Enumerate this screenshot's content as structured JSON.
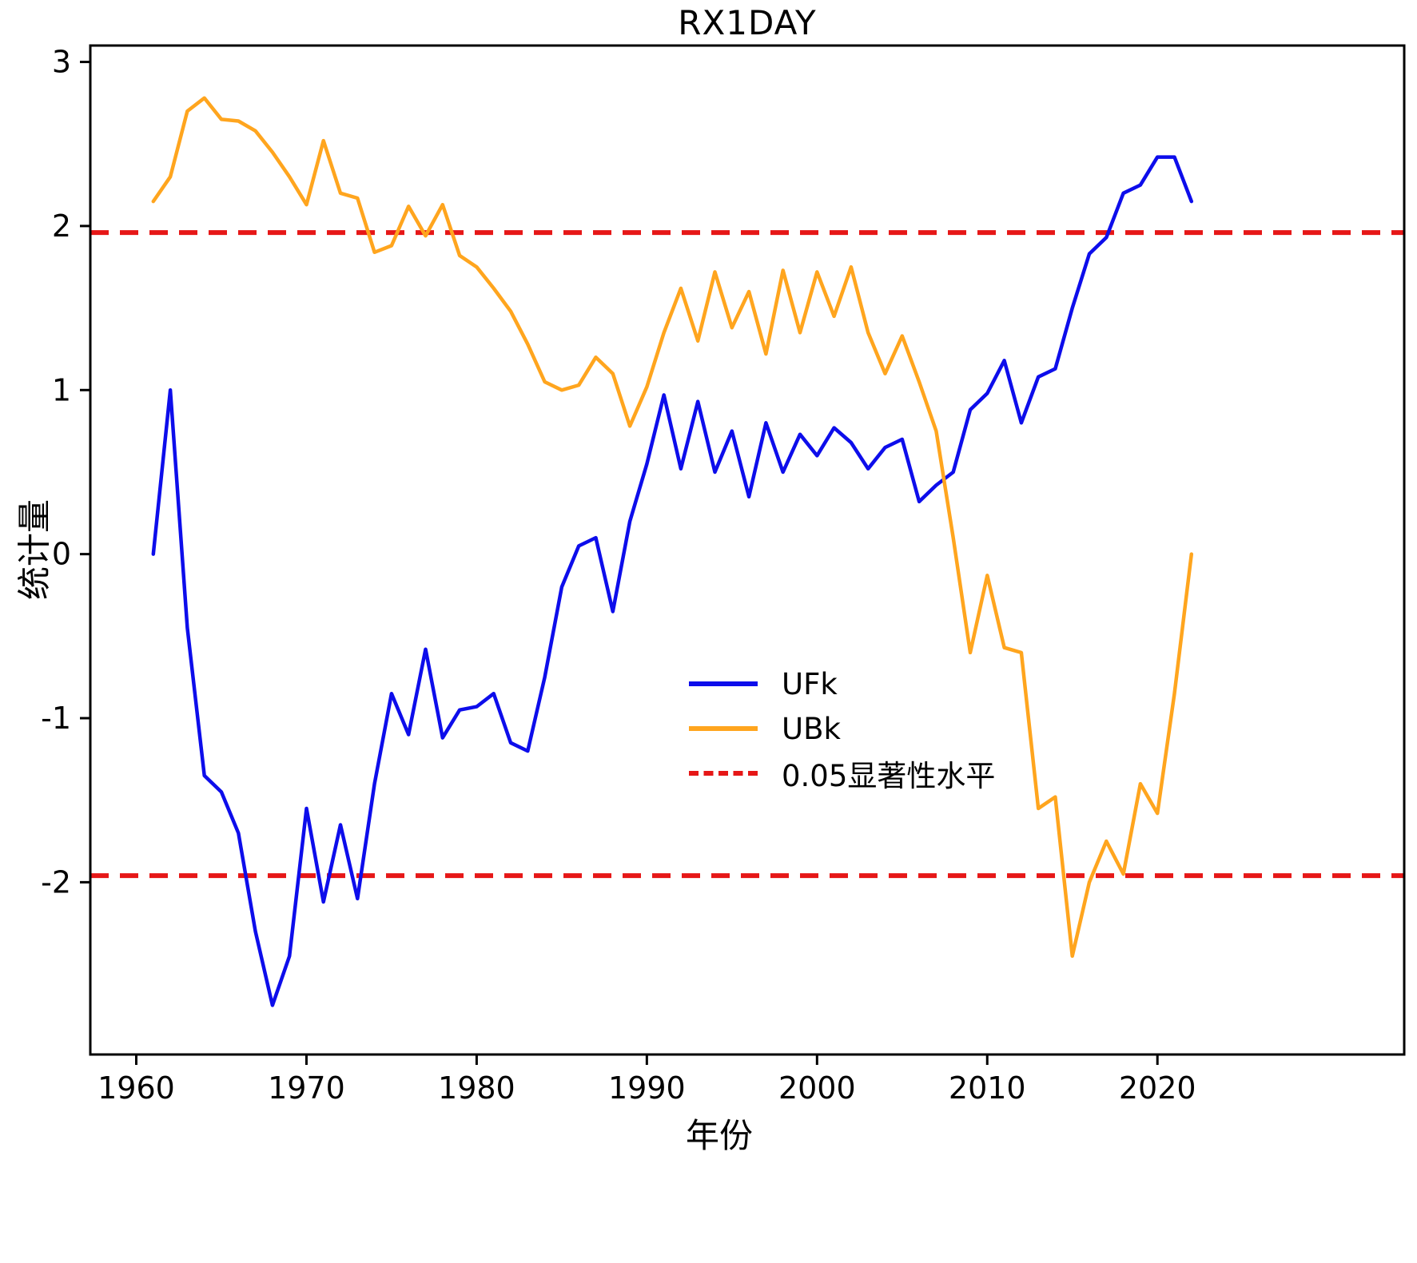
{
  "chart_data": {
    "type": "line",
    "title": "RX1DAY",
    "xlabel": "年份",
    "ylabel": "统计量",
    "xlim": [
      1957.3,
      2034.5
    ],
    "ylim": [
      -3.05,
      3.1
    ],
    "xticks": [
      1960,
      1970,
      1980,
      1990,
      2000,
      2010,
      2020
    ],
    "yticks": [
      -2,
      -1,
      0,
      1,
      2,
      3
    ],
    "grid": false,
    "legend_position": "center-right-inside",
    "x": [
      1961,
      1962,
      1963,
      1964,
      1965,
      1966,
      1967,
      1968,
      1969,
      1970,
      1971,
      1972,
      1973,
      1974,
      1975,
      1976,
      1977,
      1978,
      1979,
      1980,
      1981,
      1982,
      1983,
      1984,
      1985,
      1986,
      1987,
      1988,
      1989,
      1990,
      1991,
      1992,
      1993,
      1994,
      1995,
      1996,
      1997,
      1998,
      1999,
      2000,
      2001,
      2002,
      2003,
      2004,
      2005,
      2006,
      2007,
      2008,
      2009,
      2010,
      2011,
      2012,
      2013,
      2014,
      2015,
      2016,
      2017,
      2018,
      2019,
      2020,
      2021,
      2022
    ],
    "series": [
      {
        "name": "UFk",
        "color": "#0d0deb",
        "style": "solid",
        "values": [
          0.0,
          1.0,
          -0.45,
          -1.35,
          -1.45,
          -1.7,
          -2.3,
          -2.75,
          -2.45,
          -1.55,
          -2.12,
          -1.65,
          -2.1,
          -1.4,
          -0.85,
          -1.1,
          -0.58,
          -1.12,
          -0.95,
          -0.93,
          -0.85,
          -1.15,
          -1.2,
          -0.75,
          -0.2,
          0.05,
          0.1,
          -0.35,
          0.2,
          0.55,
          0.97,
          0.52,
          0.93,
          0.5,
          0.75,
          0.35,
          0.8,
          0.5,
          0.73,
          0.6,
          0.77,
          0.68,
          0.52,
          0.65,
          0.7,
          0.32,
          0.42,
          0.5,
          0.88,
          0.98,
          1.18,
          0.8,
          1.08,
          1.13,
          1.5,
          1.83,
          1.93,
          2.2,
          2.25,
          2.42,
          2.42,
          2.15
        ]
      },
      {
        "name": "UBk",
        "color": "#ffa51e",
        "style": "solid",
        "values": [
          2.15,
          2.3,
          2.7,
          2.78,
          2.65,
          2.64,
          2.58,
          2.45,
          2.3,
          2.13,
          2.52,
          2.2,
          2.17,
          1.84,
          1.88,
          2.12,
          1.94,
          2.13,
          1.82,
          1.75,
          1.62,
          1.48,
          1.28,
          1.05,
          1.0,
          1.03,
          1.2,
          1.1,
          0.78,
          1.02,
          1.35,
          1.62,
          1.3,
          1.72,
          1.38,
          1.6,
          1.22,
          1.73,
          1.35,
          1.72,
          1.45,
          1.75,
          1.35,
          1.1,
          1.33,
          1.05,
          0.75,
          0.1,
          -0.6,
          -0.13,
          -0.57,
          -0.6,
          -1.55,
          -1.48,
          -2.45,
          -2.0,
          -1.75,
          -1.95,
          -1.4,
          -1.58,
          -0.85,
          0.0
        ]
      }
    ],
    "thresholds": {
      "label": "0.05显著性水平",
      "color": "#e61717",
      "style": "dashed",
      "values": [
        1.96,
        -1.96
      ]
    }
  }
}
